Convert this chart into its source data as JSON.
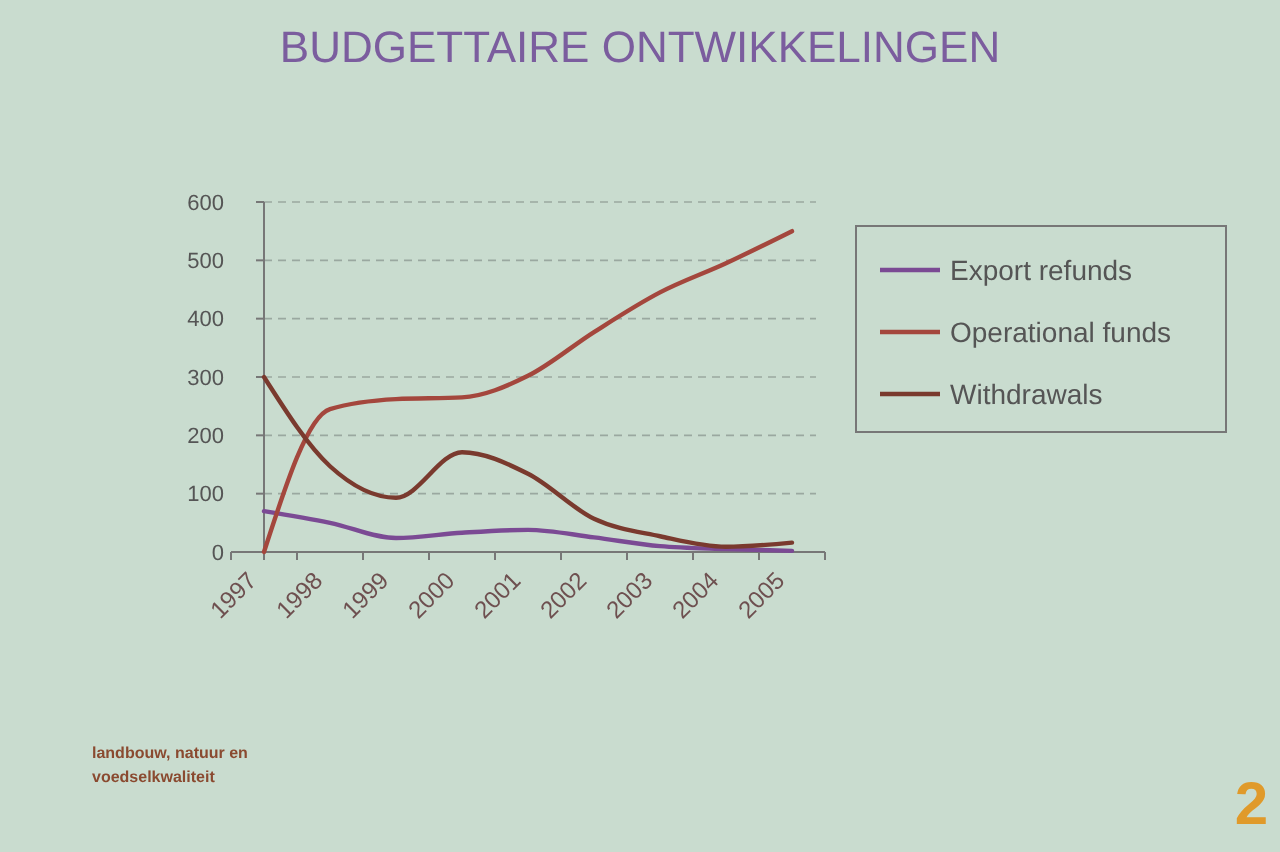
{
  "chart_data": {
    "type": "line",
    "title": "BUDGETTAIRE ONTWIKKELINGEN",
    "categories": [
      "1997",
      "1998",
      "1999",
      "2000",
      "2001",
      "2002",
      "2003",
      "2004",
      "2005"
    ],
    "series": [
      {
        "name": "Export refunds",
        "color": "#7b4a94",
        "values": [
          70,
          50,
          24,
          33,
          38,
          25,
          10,
          5,
          2
        ]
      },
      {
        "name": "Operational funds",
        "color": "#a4473d",
        "values": [
          0,
          245,
          262,
          265,
          302,
          377,
          445,
          495,
          550
        ]
      },
      {
        "name": "Withdrawals",
        "color": "#7a3a2e",
        "values": [
          300,
          147,
          93,
          171,
          134,
          57,
          27,
          9,
          16
        ]
      }
    ],
    "ylim": [
      0,
      600
    ],
    "yticks": [
      0,
      100,
      200,
      300,
      400,
      500,
      600
    ],
    "grid": "y",
    "legend": "right",
    "annotations": [
      "landbouw, natuur en\nvoedselkwaliteit",
      "2"
    ]
  }
}
